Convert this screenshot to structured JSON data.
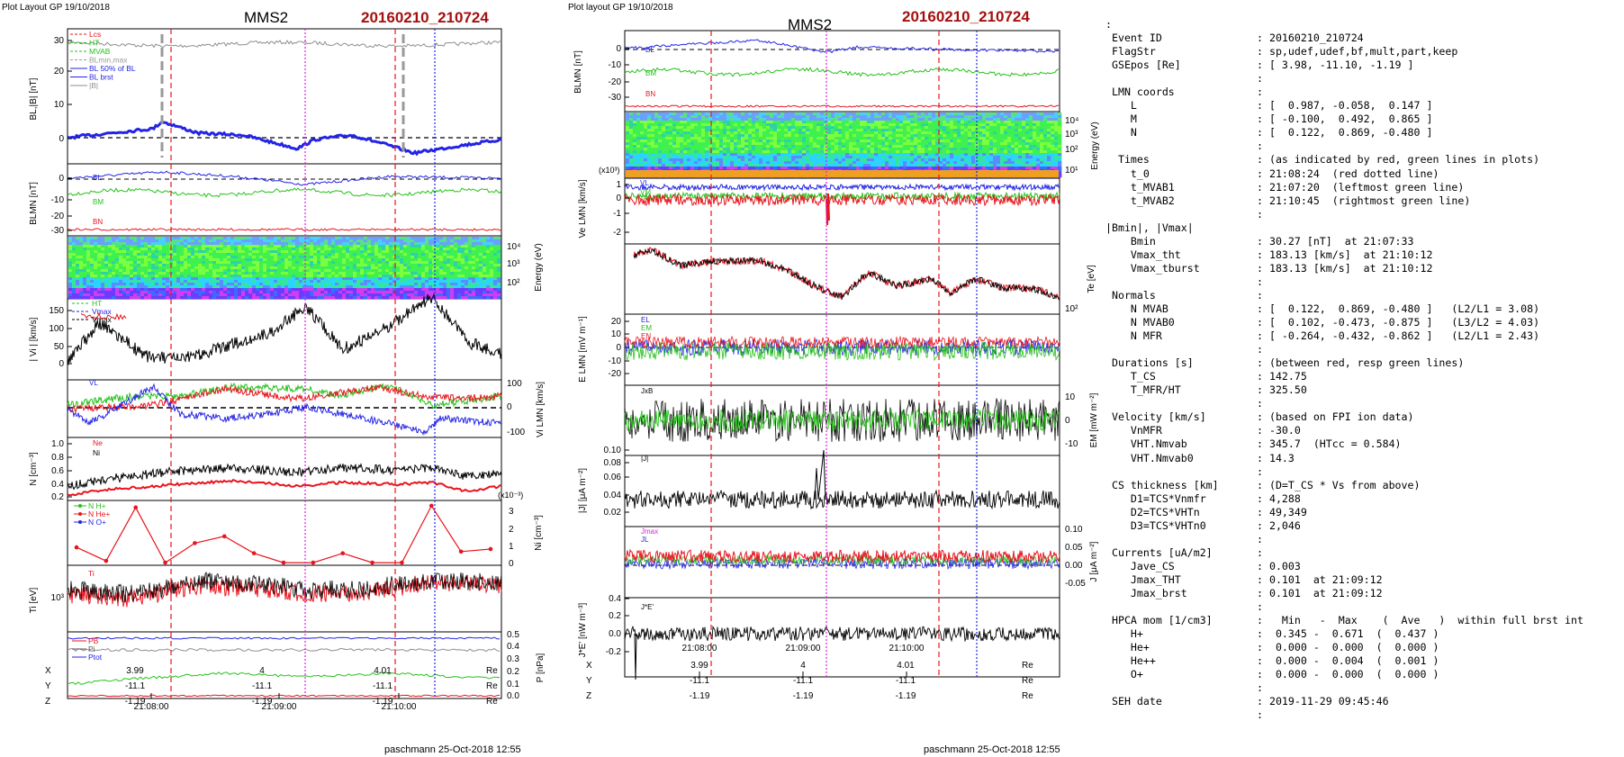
{
  "header": {
    "left_label": "Plot Layout GP 19/10/2018",
    "mid_label": "Plot layout GP 19/10/2018",
    "spacecraft": "MMS2",
    "event": "20160210_210724"
  },
  "footer": {
    "credit": "paschmann 25-Oct-2018 12:55"
  },
  "coords": {
    "rows": [
      {
        "label": "X",
        "values": [
          "3.99",
          "4",
          "4.01"
        ],
        "unit": "Re"
      },
      {
        "label": "Y",
        "values": [
          "-11.1",
          "-11.1",
          "-11.1"
        ],
        "unit": "Re"
      },
      {
        "label": "Z",
        "values": [
          "-1.19",
          "-1.19",
          "-1.19"
        ],
        "unit": "Re"
      }
    ]
  },
  "chart_data": [
    {
      "panel": "left",
      "type": "line",
      "x_ticks": [
        "21:08:00",
        "21:09:00",
        "21:10:00"
      ],
      "colors": {
        "red": "#e8141e",
        "green": "#25c219",
        "blue": "#2424e6",
        "magenta": "#e11ee1",
        "black": "#000000",
        "gray": "#8e8e8e"
      },
      "subplots": [
        {
          "id": "b",
          "ylabel": "BL,|B| [nT]",
          "yticks": [
            "30",
            "20",
            "10",
            "0"
          ],
          "legend": [
            "Lcs",
            "HT",
            "MVAB",
            "BLmin,max",
            "BL 50% of BL",
            "BL brst",
            "|B|"
          ]
        },
        {
          "id": "blmn",
          "ylabel": "BLMN [nT]",
          "yticks": [
            "0",
            "-10",
            "-20",
            "-30"
          ],
          "legend": [
            "BL",
            "BM",
            "BN"
          ]
        },
        {
          "id": "spec",
          "ylabel_right": "Energy (eV)",
          "yticks_right": [
            "10⁴",
            "10³",
            "10²"
          ]
        },
        {
          "id": "vi",
          "ylabel": "| Vi | [km/s]",
          "yticks": [
            "150",
            "100",
            "50",
            "0"
          ],
          "legend": [
            "HT",
            "Vmax",
            "Vmax"
          ]
        },
        {
          "id": "vlmn",
          "ylabel_right": "Vi LMN [km/s]",
          "yticks_right": [
            "100",
            "0",
            "-100"
          ],
          "legend": [
            "VL"
          ]
        },
        {
          "id": "n",
          "ylabel": "N [cm⁻³]",
          "yticks": [
            "1.0",
            "0.8",
            "0.6",
            "0.4",
            "0.2"
          ],
          "legend": [
            "Ne",
            "Ni"
          ]
        },
        {
          "id": "ni",
          "ylabel_right": "Ni [cm⁻³]",
          "yticks_right": [
            "3",
            "2",
            "1",
            "0"
          ],
          "scale_note": "(x10⁻³)",
          "legend": [
            "N H+",
            "N He+",
            "N O+"
          ],
          "series": [
            {
              "name": "N He+",
              "values": [
                0.95,
                0.15,
                3.3,
                0.05,
                1.2,
                1.6,
                0.6,
                0.05,
                0.05,
                0.6,
                0.05,
                0.05,
                3.4,
                0.7,
                0.85
              ]
            }
          ]
        },
        {
          "id": "ti",
          "ylabel": "Ti [eV]",
          "yticks": [
            "10³"
          ],
          "legend": [
            "Ti"
          ]
        },
        {
          "id": "p",
          "ylabel_right": "P [nPa]",
          "yticks_right": [
            "0.5",
            "0.4",
            "0.3",
            "0.2",
            "0.1",
            "0.0"
          ],
          "legend": [
            "PB",
            "Pi",
            "Ptot"
          ]
        }
      ]
    },
    {
      "panel": "middle",
      "type": "line",
      "x_ticks": [
        "21:08:00",
        "21:09:00",
        "21:10:00"
      ],
      "subplots": [
        {
          "id": "b",
          "ylabel": "BLMN [nT]",
          "yticks": [
            "0",
            "-10",
            "-20",
            "-30"
          ],
          "legend": [
            "BL",
            "BM",
            "BN"
          ]
        },
        {
          "id": "spec",
          "ylabel_right": "Energy (eV)",
          "yticks_right": [
            "10⁴",
            "10³",
            "10²",
            "10¹"
          ]
        },
        {
          "id": "ve",
          "ylabel": "Ve LMN [km/s]",
          "yticks": [
            "1",
            "0",
            "-1",
            "-2"
          ],
          "scale_note": "(x10³)",
          "legend": [
            "VL",
            "VM",
            "VN"
          ]
        },
        {
          "id": "te",
          "ylabel_right": "Te [eV]",
          "yticks_right": [
            "10²"
          ]
        },
        {
          "id": "e",
          "ylabel": "E LMN [mV m⁻¹]",
          "yticks": [
            "20",
            "10",
            "0",
            "-10",
            "-20"
          ],
          "legend": [
            "EL",
            "EM",
            "EN"
          ]
        },
        {
          "id": "em",
          "ylabel_right": "EM [mW m⁻²]",
          "yticks_right": [
            "10",
            "0",
            "-10"
          ],
          "legend": [
            "JxB"
          ]
        },
        {
          "id": "j",
          "ylabel": "|J| [μA m⁻²]",
          "yticks": [
            "0.10",
            "0.08",
            "0.06",
            "0.04",
            "0.02"
          ],
          "legend": [
            "|J|"
          ]
        },
        {
          "id": "jlmn",
          "ylabel_right": "J [μA m⁻²]",
          "yticks_right": [
            "0.10",
            "0.05",
            "0.00",
            "-0.05"
          ],
          "legend": [
            "Jmax",
            "JL"
          ]
        },
        {
          "id": "je",
          "ylabel": "J*E' [nW m⁻³]",
          "yticks": [
            "0.4",
            "0.2",
            "0.0",
            "-0.2"
          ],
          "legend": [
            "J*E'"
          ]
        }
      ]
    }
  ],
  "info": {
    "rows": [
      {
        "k": ":",
        "v": "",
        "indent": 0
      },
      {
        "k": "Event ID",
        "v": ": 20160210_210724",
        "indent": 1
      },
      {
        "k": "FlagStr",
        "v": ": sp,udef,udef,bf,mult,part,keep",
        "indent": 1
      },
      {
        "k": "GSEpos [Re]",
        "v": ": [ 3.98, -11.10, -1.19 ]",
        "indent": 1
      },
      {
        "k": "",
        "v": ":",
        "indent": 1
      },
      {
        "k": "LMN coords",
        "v": ":",
        "indent": 1
      },
      {
        "k": "L",
        "v": ": [  0.987, -0.058,  0.147 ]",
        "indent": 3
      },
      {
        "k": "M",
        "v": ": [ -0.100,  0.492,  0.865 ]",
        "indent": 3
      },
      {
        "k": "N",
        "v": ": [  0.122,  0.869, -0.480 ]",
        "indent": 3
      },
      {
        "k": "",
        "v": ":",
        "indent": 1
      },
      {
        "k": "Times",
        "v": ": (as indicated by red, green lines in plots)",
        "indent": 2
      },
      {
        "k": "t_0",
        "v": ": 21:08:24  (red dotted line)",
        "indent": 3
      },
      {
        "k": "t_MVAB1",
        "v": ": 21:07:20  (leftmost green line)",
        "indent": 3
      },
      {
        "k": "t_MVAB2",
        "v": ": 21:10:45  (rightmost green line)",
        "indent": 3
      },
      {
        "k": "",
        "v": ":",
        "indent": 1
      },
      {
        "k": "|Bmin|, |Vmax|",
        "v": "",
        "indent": 0
      },
      {
        "k": "Bmin",
        "v": ": 30.27 [nT]  at 21:07:33",
        "indent": 3
      },
      {
        "k": "Vmax_tht",
        "v": ": 183.13 [km/s]  at 21:10:12",
        "indent": 3
      },
      {
        "k": "Vmax_tburst",
        "v": ": 183.13 [km/s]  at 21:10:12",
        "indent": 3
      },
      {
        "k": "",
        "v": ":",
        "indent": 1
      },
      {
        "k": "Normals",
        "v": ":",
        "indent": 1
      },
      {
        "k": "N MVAB",
        "v": ": [  0.122,  0.869, -0.480 ]   (L2/L1 = 3.08)",
        "indent": 3
      },
      {
        "k": "N MVAB0",
        "v": ": [  0.102, -0.473, -0.875 ]   (L3/L2 = 4.03)",
        "indent": 3
      },
      {
        "k": "N MFR",
        "v": ": [ -0.264, -0.432, -0.862 ]   (L2/L1 = 2.43)",
        "indent": 3
      },
      {
        "k": "",
        "v": ":",
        "indent": 1
      },
      {
        "k": "Durations [s]",
        "v": ": (between red, resp green lines)",
        "indent": 1
      },
      {
        "k": "T_CS",
        "v": ": 142.75",
        "indent": 3
      },
      {
        "k": "T_MFR/HT",
        "v": ": 325.50",
        "indent": 3
      },
      {
        "k": "",
        "v": ":",
        "indent": 1
      },
      {
        "k": "Velocity [km/s]",
        "v": ": (based on FPI ion data)",
        "indent": 1
      },
      {
        "k": "VnMFR",
        "v": ": -30.0",
        "indent": 3
      },
      {
        "k": "VHT.Nmvab",
        "v": ": 345.7  (HTcc = 0.584)",
        "indent": 3
      },
      {
        "k": "VHT.Nmvab0",
        "v": ": 14.3",
        "indent": 3
      },
      {
        "k": "",
        "v": ":",
        "indent": 1
      },
      {
        "k": "CS thickness [km]",
        "v": ": (D=T_CS * Vs from above)",
        "indent": 1
      },
      {
        "k": "D1=TCS*Vnmfr",
        "v": ": 4,288",
        "indent": 3
      },
      {
        "k": "D2=TCS*VHTn",
        "v": ": 49,349",
        "indent": 3
      },
      {
        "k": "D3=TCS*VHTn0",
        "v": ": 2,046",
        "indent": 3
      },
      {
        "k": "",
        "v": ":",
        "indent": 1
      },
      {
        "k": "Currents [uA/m2]",
        "v": ":",
        "indent": 1
      },
      {
        "k": "Jave_CS",
        "v": ": 0.003",
        "indent": 3
      },
      {
        "k": "Jmax_THT",
        "v": ": 0.101  at 21:09:12",
        "indent": 3
      },
      {
        "k": "Jmax_brst",
        "v": ": 0.101  at 21:09:12",
        "indent": 3
      },
      {
        "k": "",
        "v": ":",
        "indent": 1
      },
      {
        "k": "HPCA mom [1/cm3]",
        "v": ":   Min   -  Max    (  Ave   )  within full brst int",
        "indent": 1
      },
      {
        "k": "H+",
        "v": ":  0.345 -  0.671  (  0.437 )",
        "indent": 3
      },
      {
        "k": "He+",
        "v": ":  0.000 -  0.000  (  0.000 )",
        "indent": 3
      },
      {
        "k": "He++",
        "v": ":  0.000 -  0.004  (  0.001 )",
        "indent": 3
      },
      {
        "k": "O+",
        "v": ":  0.000 -  0.000  (  0.000 )",
        "indent": 3
      },
      {
        "k": "",
        "v": ":",
        "indent": 1
      },
      {
        "k": "SEH date",
        "v": ": 2019-11-29 09:45:46",
        "indent": 1
      },
      {
        "k": "",
        "v": ":",
        "indent": 1
      }
    ]
  }
}
